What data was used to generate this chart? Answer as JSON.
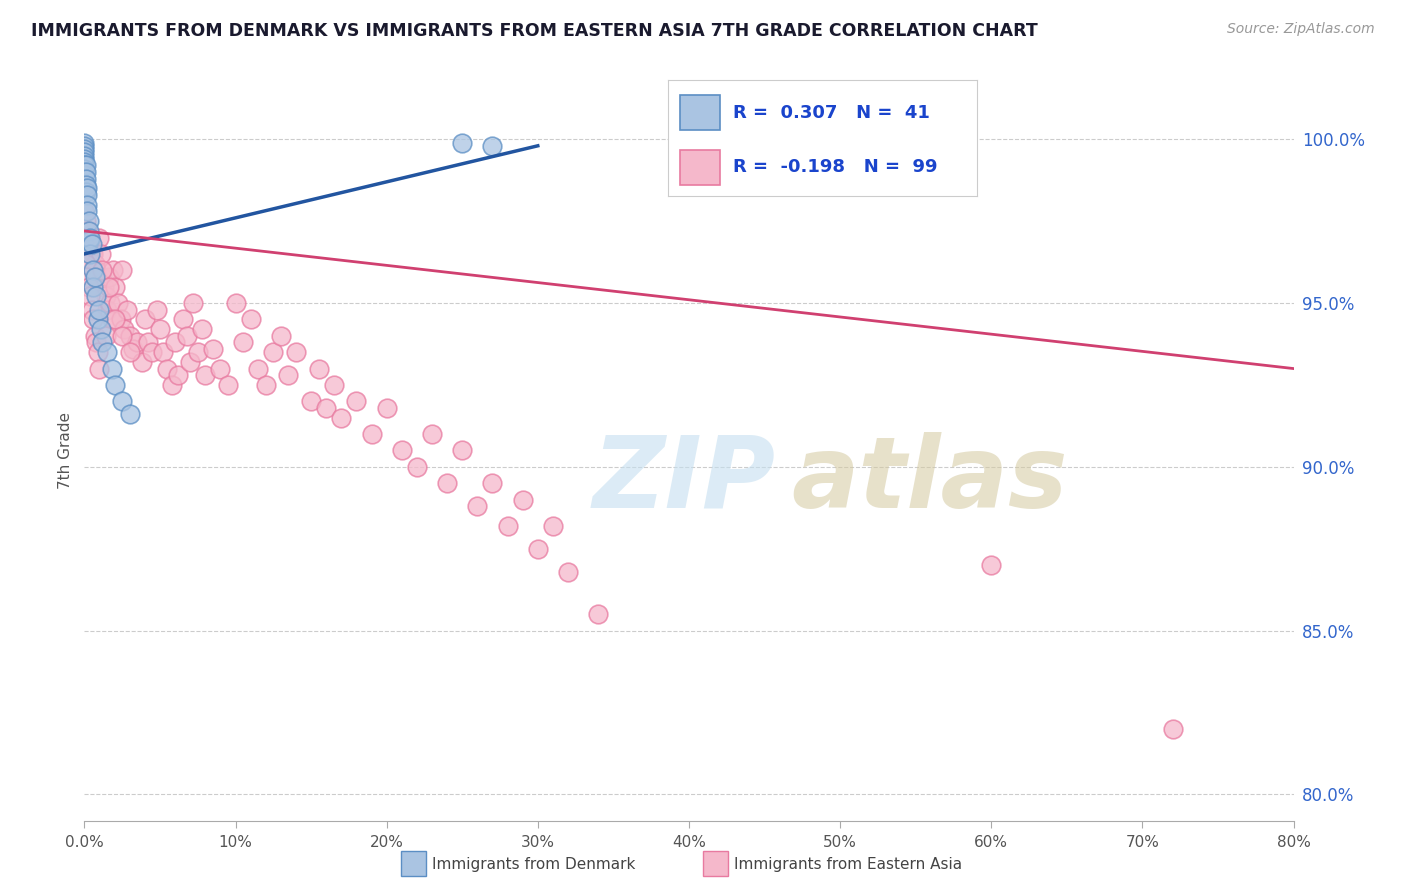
{
  "title": "IMMIGRANTS FROM DENMARK VS IMMIGRANTS FROM EASTERN ASIA 7TH GRADE CORRELATION CHART",
  "source": "Source: ZipAtlas.com",
  "ylabel": "7th Grade",
  "x_min": 0.0,
  "x_max": 0.8,
  "y_min": 0.792,
  "y_max": 1.018,
  "right_yticks": [
    1.0,
    0.95,
    0.9,
    0.85,
    0.8
  ],
  "right_yticklabels": [
    "100.0%",
    "95.0%",
    "90.0%",
    "85.0%",
    "80.0%"
  ],
  "denmark_color": "#aac4e2",
  "denmark_edge_color": "#5b8ec4",
  "eastern_asia_color": "#f5b8cb",
  "eastern_asia_edge_color": "#e87aa0",
  "denmark_trend_color": "#2255a0",
  "eastern_asia_trend_color": "#d04070",
  "R_denmark": 0.307,
  "N_denmark": 41,
  "R_eastern_asia": -0.198,
  "N_eastern_asia": 99,
  "legend_R_color": "#1a44cc",
  "denmark_x": [
    0.0,
    0.0,
    0.0,
    0.0,
    0.0,
    0.0,
    0.0,
    0.0,
    0.0,
    0.0,
    0.0,
    0.001,
    0.001,
    0.001,
    0.001,
    0.001,
    0.002,
    0.002,
    0.002,
    0.002,
    0.003,
    0.003,
    0.003,
    0.004,
    0.004,
    0.005,
    0.006,
    0.006,
    0.007,
    0.008,
    0.009,
    0.01,
    0.011,
    0.012,
    0.015,
    0.018,
    0.02,
    0.025,
    0.03,
    0.25,
    0.27
  ],
  "denmark_y": [
    0.999,
    0.998,
    0.997,
    0.996,
    0.995,
    0.994,
    0.993,
    0.992,
    0.991,
    0.99,
    0.989,
    0.992,
    0.99,
    0.988,
    0.986,
    0.984,
    0.985,
    0.983,
    0.98,
    0.978,
    0.975,
    0.972,
    0.969,
    0.97,
    0.965,
    0.968,
    0.96,
    0.955,
    0.958,
    0.952,
    0.945,
    0.948,
    0.942,
    0.938,
    0.935,
    0.93,
    0.925,
    0.92,
    0.916,
    0.999,
    0.998
  ],
  "eastern_asia_x": [
    0.0,
    0.001,
    0.002,
    0.003,
    0.004,
    0.005,
    0.006,
    0.007,
    0.008,
    0.009,
    0.01,
    0.011,
    0.012,
    0.013,
    0.014,
    0.015,
    0.016,
    0.017,
    0.018,
    0.019,
    0.02,
    0.022,
    0.024,
    0.025,
    0.026,
    0.028,
    0.03,
    0.032,
    0.035,
    0.038,
    0.04,
    0.042,
    0.045,
    0.048,
    0.05,
    0.052,
    0.055,
    0.058,
    0.06,
    0.062,
    0.065,
    0.068,
    0.07,
    0.072,
    0.075,
    0.078,
    0.08,
    0.085,
    0.09,
    0.095,
    0.1,
    0.105,
    0.11,
    0.115,
    0.12,
    0.125,
    0.13,
    0.135,
    0.14,
    0.15,
    0.155,
    0.16,
    0.165,
    0.17,
    0.18,
    0.19,
    0.2,
    0.21,
    0.22,
    0.23,
    0.24,
    0.25,
    0.26,
    0.27,
    0.28,
    0.29,
    0.3,
    0.31,
    0.32,
    0.34,
    0.0,
    0.001,
    0.002,
    0.003,
    0.004,
    0.005,
    0.006,
    0.007,
    0.008,
    0.009,
    0.01,
    0.012,
    0.014,
    0.016,
    0.02,
    0.025,
    0.03,
    0.6,
    0.72
  ],
  "eastern_asia_y": [
    0.978,
    0.975,
    0.972,
    0.97,
    0.968,
    0.966,
    0.965,
    0.962,
    0.96,
    0.958,
    0.97,
    0.965,
    0.958,
    0.955,
    0.952,
    0.948,
    0.958,
    0.95,
    0.945,
    0.96,
    0.955,
    0.95,
    0.945,
    0.96,
    0.942,
    0.948,
    0.94,
    0.936,
    0.938,
    0.932,
    0.945,
    0.938,
    0.935,
    0.948,
    0.942,
    0.935,
    0.93,
    0.925,
    0.938,
    0.928,
    0.945,
    0.94,
    0.932,
    0.95,
    0.935,
    0.942,
    0.928,
    0.936,
    0.93,
    0.925,
    0.95,
    0.938,
    0.945,
    0.93,
    0.925,
    0.935,
    0.94,
    0.928,
    0.935,
    0.92,
    0.93,
    0.918,
    0.925,
    0.915,
    0.92,
    0.91,
    0.918,
    0.905,
    0.9,
    0.91,
    0.895,
    0.905,
    0.888,
    0.895,
    0.882,
    0.89,
    0.875,
    0.882,
    0.868,
    0.855,
    0.968,
    0.962,
    0.958,
    0.955,
    0.952,
    0.948,
    0.945,
    0.94,
    0.938,
    0.935,
    0.93,
    0.96,
    0.94,
    0.955,
    0.945,
    0.94,
    0.935,
    0.87,
    0.82
  ],
  "dk_trend_x0": 0.0,
  "dk_trend_y0": 0.965,
  "dk_trend_x1": 0.3,
  "dk_trend_y1": 0.998,
  "ea_trend_x0": 0.0,
  "ea_trend_y0": 0.972,
  "ea_trend_x1": 0.8,
  "ea_trend_y1": 0.93
}
